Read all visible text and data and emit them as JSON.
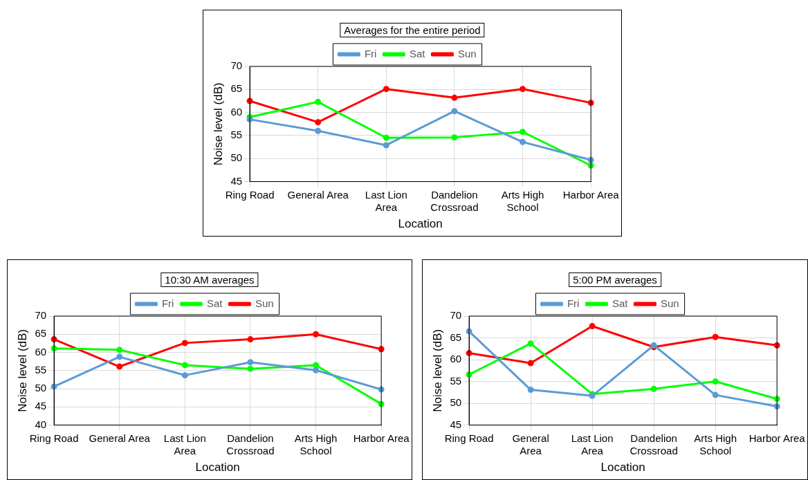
{
  "chart_data": [
    {
      "type": "line",
      "title": "Averages for the entire period",
      "xlabel": "Location",
      "ylabel": "Noise level (dB)",
      "categories": [
        "Ring Road",
        "General Area",
        "Last Lion Area",
        "Dandelion Crossroad",
        "Arts High School",
        "Harbor Area"
      ],
      "ylim": [
        45,
        70
      ],
      "yticks": [
        45,
        50,
        55,
        60,
        65,
        70
      ],
      "grid": true,
      "legend": "top",
      "marker": "circle",
      "line_style": "solid",
      "series": [
        {
          "name": "Fri",
          "color": "#5b9bd5",
          "values": [
            58.5,
            56,
            52.9,
            60.3,
            53.6,
            49.7
          ]
        },
        {
          "name": "Sat",
          "color": "#00ff00",
          "values": [
            59,
            62.3,
            54.5,
            54.6,
            55.8,
            48.5
          ]
        },
        {
          "name": "Sun",
          "color": "#ff0000",
          "values": [
            62.5,
            57.9,
            65.1,
            63.2,
            65.1,
            62.1
          ]
        }
      ]
    },
    {
      "type": "line",
      "title": "10:30 AM averages",
      "xlabel": "Location",
      "ylabel": "Noise level (dB)",
      "categories": [
        "Ring Road",
        "General Area",
        "Last Lion Area",
        "Dandelion Crossroad",
        "Arts High School",
        "Harbor Area"
      ],
      "ylim": [
        40,
        70
      ],
      "yticks": [
        40,
        45,
        50,
        55,
        60,
        65,
        70
      ],
      "grid": true,
      "legend": "top",
      "marker": "circle",
      "line_style": "solid",
      "series": [
        {
          "name": "Fri",
          "color": "#5b9bd5",
          "values": [
            50.6,
            58.8,
            53.7,
            57.3,
            55.1,
            49.8
          ]
        },
        {
          "name": "Sat",
          "color": "#00ff00",
          "values": [
            61.1,
            60.7,
            56.5,
            55.5,
            56.5,
            45.8
          ]
        },
        {
          "name": "Sun",
          "color": "#ff0000",
          "values": [
            63.6,
            56.1,
            62.6,
            63.6,
            65,
            60.9
          ]
        }
      ]
    },
    {
      "type": "line",
      "title": "5:00 PM averages",
      "xlabel": "Location",
      "ylabel": "Noise level (dB)",
      "categories": [
        "Ring Road",
        "General Area",
        "Last Lion Area",
        "Dandelion Crossroad",
        "Arts High School",
        "Harbor Area"
      ],
      "ylim": [
        45,
        70
      ],
      "yticks": [
        45,
        50,
        55,
        60,
        65,
        70
      ],
      "grid": true,
      "legend": "top",
      "marker": "circle",
      "line_style": "solid",
      "series": [
        {
          "name": "Fri",
          "color": "#5b9bd5",
          "values": [
            66.5,
            53.1,
            51.7,
            63.3,
            51.9,
            49.3
          ]
        },
        {
          "name": "Sat",
          "color": "#00ff00",
          "values": [
            56.6,
            63.7,
            52.1,
            53.3,
            55,
            51
          ]
        },
        {
          "name": "Sun",
          "color": "#ff0000",
          "values": [
            61.5,
            59.2,
            67.7,
            62.9,
            65.2,
            63.3
          ]
        }
      ]
    }
  ]
}
